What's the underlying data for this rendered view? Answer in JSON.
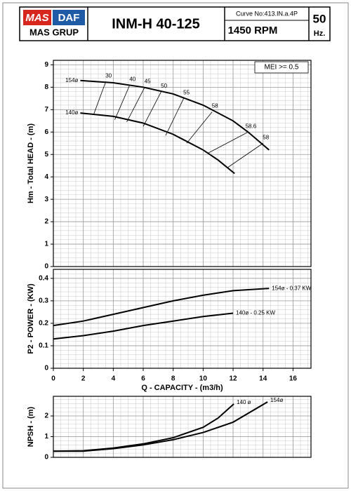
{
  "header": {
    "logo_left": "MAS",
    "logo_right": "DAF",
    "company": "MAS GRUP",
    "title": "INM-H 40-125",
    "curve_no": "Curve No:413.IN.a.4P",
    "speed": "1450 RPM",
    "frequency": "50",
    "frequency_unit": "Hz."
  },
  "chart_data": [
    {
      "type": "line",
      "ylabel": "Hm - Total HEAD - (m)",
      "annotation": "MEI >= 0.5",
      "xlim": [
        0,
        17.2
      ],
      "xticks": [
        0,
        2,
        4,
        6,
        8,
        10,
        12,
        14,
        16
      ],
      "ylim": [
        0,
        9.2
      ],
      "yticks": [
        0,
        1,
        2,
        3,
        4,
        5,
        6,
        7,
        8,
        9
      ],
      "grid": true,
      "series": [
        {
          "name": "154ø",
          "color": "#000000",
          "x": [
            1.8,
            4,
            6,
            8,
            10,
            12,
            13,
            14.4
          ],
          "values": [
            8.3,
            8.2,
            8.0,
            7.7,
            7.2,
            6.5,
            6.0,
            5.2
          ]
        },
        {
          "name": "140ø",
          "color": "#000000",
          "x": [
            1.8,
            4,
            6,
            8,
            10,
            11,
            12.1
          ],
          "values": [
            6.85,
            6.7,
            6.4,
            5.9,
            5.2,
            4.75,
            4.15
          ]
        }
      ],
      "efficiency_lines": [
        {
          "label": "30",
          "x": [
            3.5,
            2.7
          ],
          "y": [
            8.25,
            6.8
          ]
        },
        {
          "label": "40",
          "x": [
            5.1,
            4.1
          ],
          "y": [
            8.1,
            6.55
          ]
        },
        {
          "label": "45",
          "x": [
            6.1,
            4.9
          ],
          "y": [
            8.0,
            6.45
          ]
        },
        {
          "label": "50",
          "x": [
            7.2,
            6.0
          ],
          "y": [
            7.8,
            6.25
          ]
        },
        {
          "label": "55",
          "x": [
            8.7,
            7.5
          ],
          "y": [
            7.5,
            5.85
          ]
        },
        {
          "label": "58",
          "x": [
            10.6,
            8.9
          ],
          "y": [
            6.9,
            5.5
          ]
        },
        {
          "label": "58.6",
          "x": [
            13.0,
            10.3
          ],
          "y": [
            6.0,
            5.05
          ]
        },
        {
          "label": "58",
          "x": [
            14.0,
            11.6
          ],
          "y": [
            5.5,
            4.4
          ]
        }
      ]
    },
    {
      "type": "line",
      "ylabel": "P2 - POWER - (KW)",
      "xlabel": "Q - CAPACITY - (m3/h)",
      "xlim": [
        0,
        17.2
      ],
      "xticks": [
        0,
        2,
        4,
        6,
        8,
        10,
        12,
        14,
        16
      ],
      "ylim": [
        0,
        0.44
      ],
      "yticks": [
        0,
        0.1,
        0.2,
        0.3,
        0.4
      ],
      "grid": true,
      "series": [
        {
          "name": "154ø - 0.37 KW",
          "color": "#000000",
          "x": [
            0,
            2,
            4,
            6,
            8,
            10,
            12,
            14.4
          ],
          "values": [
            0.19,
            0.21,
            0.24,
            0.27,
            0.3,
            0.325,
            0.345,
            0.355
          ]
        },
        {
          "name": "140ø - 0.25 KW",
          "color": "#000000",
          "x": [
            0,
            2,
            4,
            6,
            8,
            10,
            12
          ],
          "values": [
            0.13,
            0.145,
            0.165,
            0.19,
            0.21,
            0.23,
            0.245
          ]
        }
      ]
    },
    {
      "type": "line",
      "ylabel": "NPSH - (m)",
      "xlim": [
        0,
        17.2
      ],
      "xticks": [
        0,
        2,
        4,
        6,
        8,
        10,
        12,
        14,
        16
      ],
      "ylim": [
        0,
        2.95
      ],
      "yticks": [
        0,
        1,
        2
      ],
      "grid": true,
      "series": [
        {
          "name": "140 ø",
          "color": "#000000",
          "x": [
            0,
            2,
            4,
            6,
            8,
            10,
            11,
            12.05
          ],
          "values": [
            0.3,
            0.32,
            0.45,
            0.65,
            0.95,
            1.45,
            1.9,
            2.58
          ]
        },
        {
          "name": "154ø",
          "color": "#000000",
          "x": [
            0,
            2,
            4,
            6,
            8,
            10,
            12,
            14.3
          ],
          "values": [
            0.3,
            0.3,
            0.42,
            0.6,
            0.85,
            1.2,
            1.7,
            2.68
          ]
        }
      ]
    }
  ]
}
